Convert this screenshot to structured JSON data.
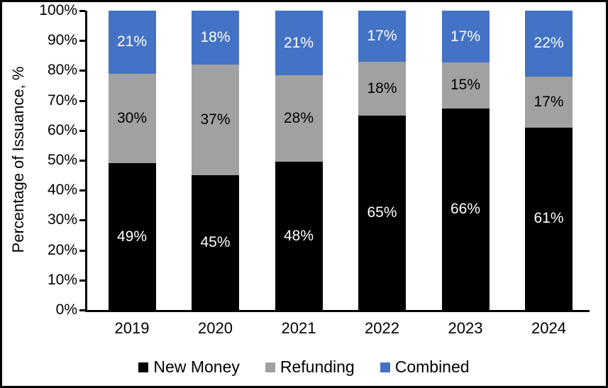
{
  "chart_data": {
    "type": "bar",
    "stacked": true,
    "title": "",
    "xlabel": "",
    "ylabel": "Percentage of Issuance, %",
    "categories": [
      "2019",
      "2020",
      "2021",
      "2022",
      "2023",
      "2024"
    ],
    "series": [
      {
        "name": "New Money",
        "color": "#000000",
        "label_color": "#ffffff",
        "values": [
          49,
          45,
          48,
          65,
          66,
          61
        ]
      },
      {
        "name": "Refunding",
        "color": "#a1a1a1",
        "label_color": "#000000",
        "values": [
          30,
          37,
          28,
          18,
          15,
          17
        ]
      },
      {
        "name": "Combined",
        "color": "#4472c4",
        "label_color": "#ffffff",
        "values": [
          21,
          18,
          21,
          17,
          17,
          22
        ]
      }
    ],
    "value_suffix": "%",
    "y_ticks": [
      "0%",
      "10%",
      "20%",
      "30%",
      "40%",
      "50%",
      "60%",
      "70%",
      "80%",
      "90%",
      "100%"
    ],
    "ylim": [
      0,
      100
    ],
    "grid": false,
    "legend_position": "bottom"
  }
}
